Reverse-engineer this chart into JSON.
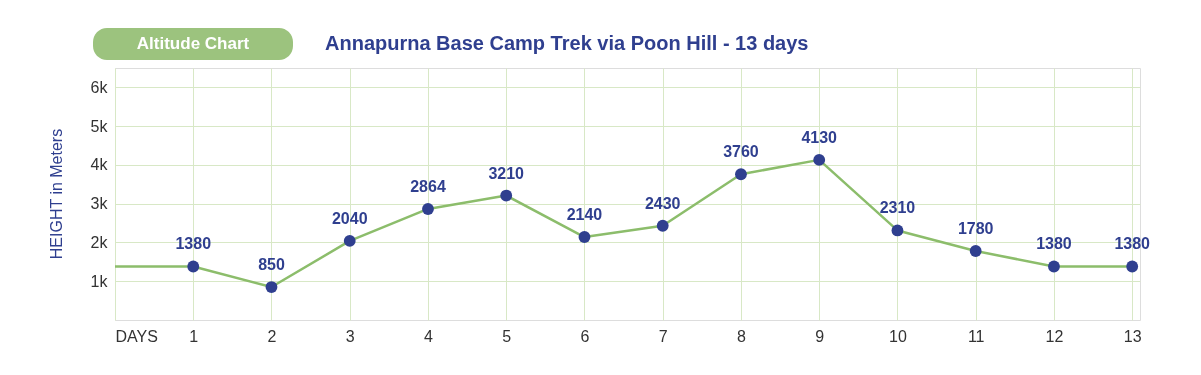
{
  "chart_data": {
    "type": "line",
    "title": "Annapurna Base Camp Trek via Poon Hill - 13 days",
    "subtitle": "Altitude Chart",
    "ylabel": "HEIGHT in Meters",
    "series": [
      {
        "color": "#8cbd6b",
        "marker": "none",
        "x": [
          0,
          1,
          2,
          3,
          4,
          5,
          6,
          7,
          8,
          9,
          10,
          11,
          12,
          13
        ],
        "values": [
          1380,
          1380,
          850,
          2040,
          2864,
          3210,
          2140,
          2430,
          3760,
          4130,
          2310,
          1780,
          1380,
          1380
        ]
      },
      {
        "type": "scatter",
        "color": "#2f3f8f",
        "marker": "circle",
        "data_labels": true,
        "x": [
          1,
          2,
          3,
          4,
          5,
          6,
          7,
          8,
          9,
          10,
          11,
          12,
          13
        ],
        "values": [
          1380,
          850,
          2040,
          2864,
          3210,
          2140,
          2430,
          3760,
          4130,
          2310,
          1780,
          1380,
          1380
        ]
      }
    ],
    "xlim": [
      0,
      13.1
    ],
    "xticks": [
      {
        "value": 0,
        "label": "DAYS"
      },
      1,
      2,
      3,
      4,
      5,
      6,
      7,
      8,
      9,
      10,
      11,
      12,
      13
    ],
    "ylim": [
      0,
      6500
    ],
    "yticks": [
      {
        "value": 1000,
        "label": "1k"
      },
      {
        "value": 2000,
        "label": "2k"
      },
      {
        "value": 3000,
        "label": "3k"
      },
      {
        "value": 4000,
        "label": "4k"
      },
      {
        "value": 5000,
        "label": "5k"
      },
      {
        "value": 6000,
        "label": "6k"
      }
    ],
    "grid": true
  }
}
